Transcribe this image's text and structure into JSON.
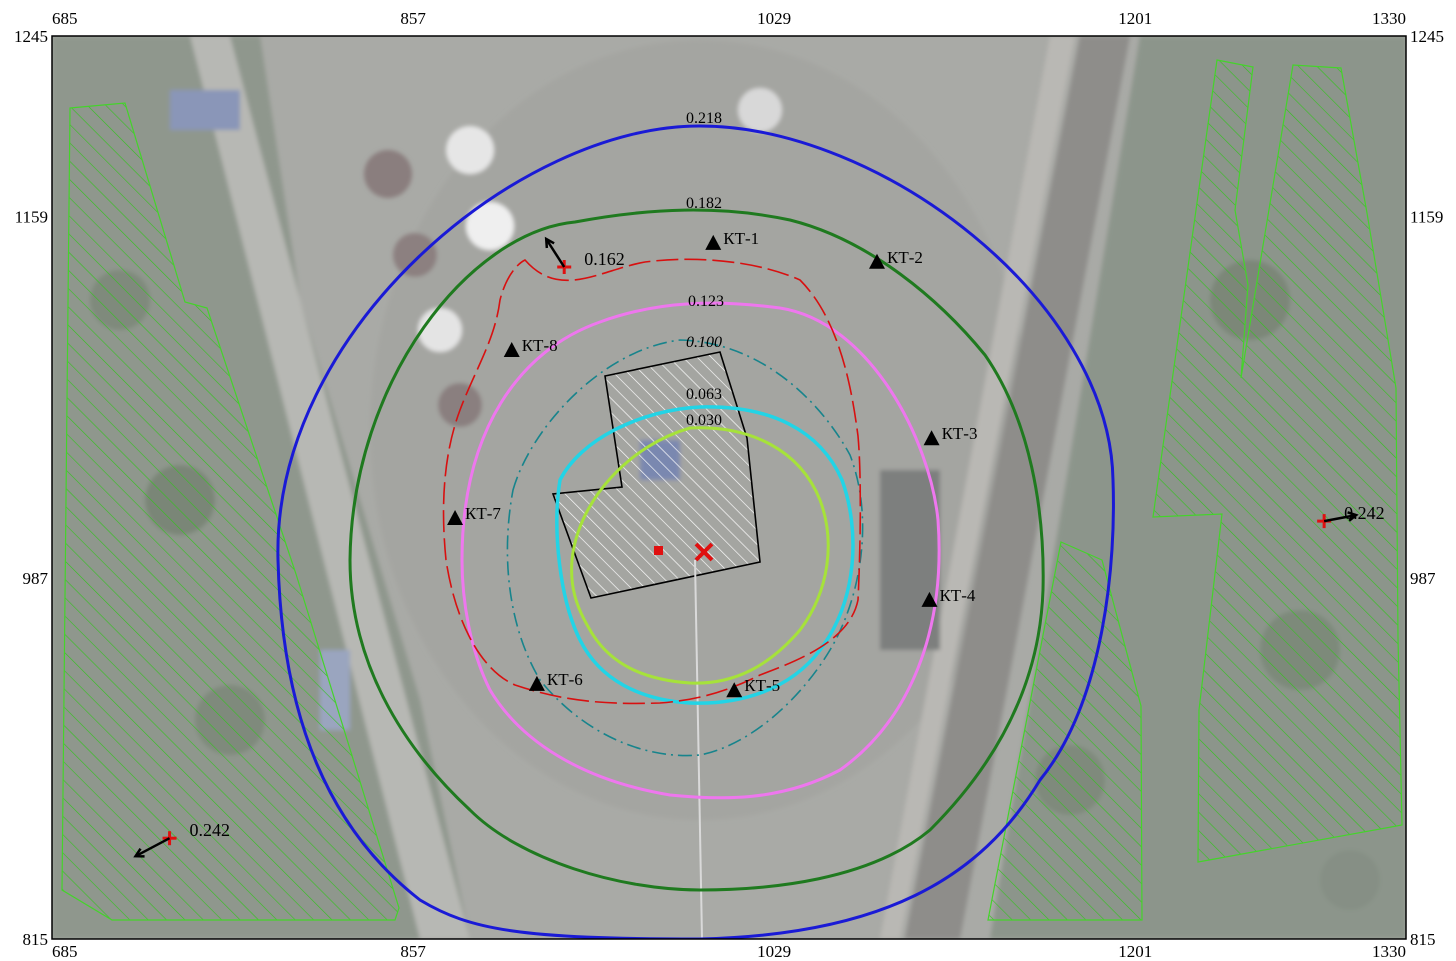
{
  "chart_data": {
    "type": "contour-map",
    "x_ticks": [
      "685",
      "857",
      "1029",
      "1201",
      "1330"
    ],
    "y_ticks": [
      "1245",
      "1159",
      "987",
      "815"
    ],
    "xlim": [
      685,
      1330
    ],
    "ylim": [
      815,
      1245
    ],
    "contours": [
      {
        "label": "0.218",
        "color": "#1a1ad6",
        "style": "solid"
      },
      {
        "label": "0.182",
        "color": "#1f7a1f",
        "style": "solid"
      },
      {
        "label": "0.123",
        "color": "#ee77ee",
        "style": "solid"
      },
      {
        "label": "0.100",
        "color": "#17848c",
        "style": "dashed"
      },
      {
        "label": "0.063",
        "color": "#22d4e6",
        "style": "solid"
      },
      {
        "label": "0.030",
        "color": "#a6e23a",
        "style": "solid"
      }
    ],
    "control_points": [
      {
        "label": "КТ-1",
        "x": 1000,
        "y": 1146
      },
      {
        "label": "КТ-2",
        "x": 1078,
        "y": 1137
      },
      {
        "label": "КТ-3",
        "x": 1104,
        "y": 1053
      },
      {
        "label": "КТ-4",
        "x": 1103,
        "y": 976
      },
      {
        "label": "КТ-5",
        "x": 1010,
        "y": 933
      },
      {
        "label": "КТ-6",
        "x": 916,
        "y": 936
      },
      {
        "label": "КТ-7",
        "x": 877,
        "y": 1015
      },
      {
        "label": "КТ-8",
        "x": 904,
        "y": 1095
      }
    ],
    "max_points": [
      {
        "label": "0.162",
        "x": 929,
        "y": 1135
      },
      {
        "label": "0.242",
        "x": 741,
        "y": 863
      },
      {
        "label": "0.242",
        "x": 1291,
        "y": 1014
      }
    ],
    "residential_zones_count": 3
  },
  "colors": {
    "sanitary_boundary": "#d81010",
    "residential_hatch": "#33c11e",
    "source": "#e01010",
    "marker": "#000000"
  }
}
